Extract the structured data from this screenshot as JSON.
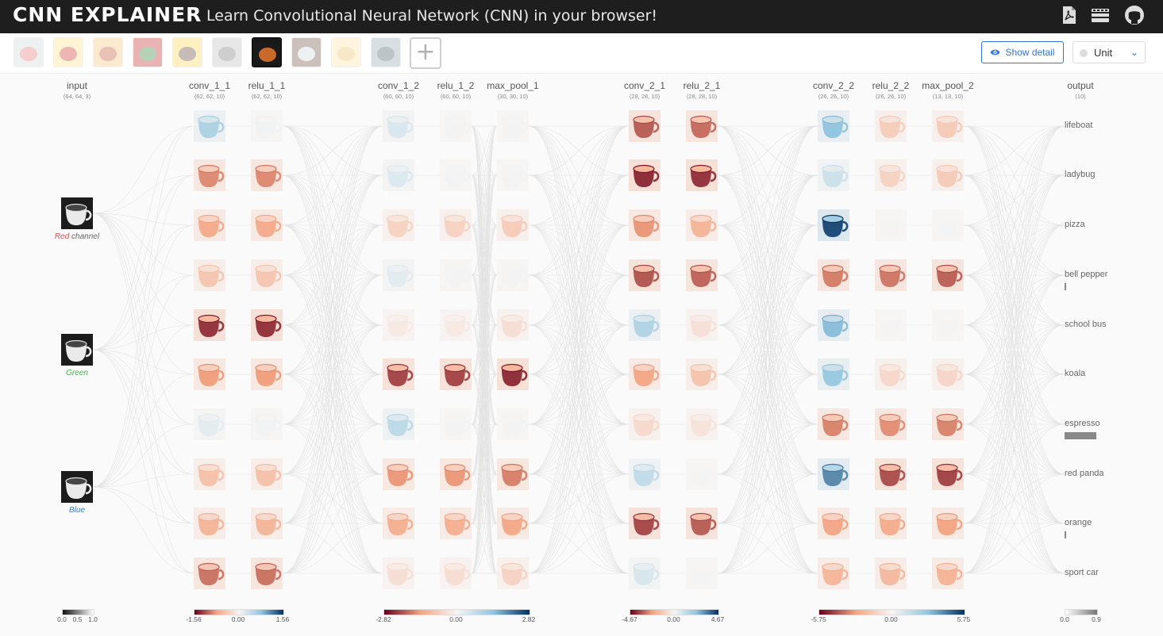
{
  "header": {
    "brand": "CNN EXPLAINER",
    "tagline": "Learn Convolutional Neural Network (CNN) in your browser!",
    "icons": [
      "pdf-icon",
      "video-icon",
      "github-icon"
    ]
  },
  "toolbar": {
    "thumbnails": [
      "lifeboat",
      "ladybug",
      "pizza",
      "bell pepper",
      "school bus",
      "koala",
      "espresso",
      "red panda",
      "orange",
      "sport car"
    ],
    "selected_index": 6,
    "add_label": "+",
    "detail_label": "Show detail",
    "unit_label": "Unit"
  },
  "layers": [
    {
      "name": "input",
      "dims": "(64, 64, 3)"
    },
    {
      "name": "conv_1_1",
      "dims": "(62, 62, 10)"
    },
    {
      "name": "relu_1_1",
      "dims": "(62, 62, 10)"
    },
    {
      "name": "conv_1_2",
      "dims": "(60, 60, 10)"
    },
    {
      "name": "relu_1_2",
      "dims": "(60, 60, 10)"
    },
    {
      "name": "max_pool_1",
      "dims": "(30, 30, 10)"
    },
    {
      "name": "conv_2_1",
      "dims": "(28, 28, 10)"
    },
    {
      "name": "relu_2_1",
      "dims": "(28, 28, 10)"
    },
    {
      "name": "conv_2_2",
      "dims": "(26, 26, 10)"
    },
    {
      "name": "relu_2_2",
      "dims": "(26, 26, 10)"
    },
    {
      "name": "max_pool_2",
      "dims": "(13, 13, 10)"
    },
    {
      "name": "output",
      "dims": "(10)"
    }
  ],
  "channels": [
    {
      "label_a": "Red",
      "label_b": " channel",
      "color": "#d9534f"
    },
    {
      "label_a": "Green",
      "label_b": "",
      "color": "#4caf50"
    },
    {
      "label_a": "Blue",
      "label_b": "",
      "color": "#3b7fc4"
    }
  ],
  "classes": [
    "lifeboat",
    "ladybug",
    "pizza",
    "bell pepper",
    "school bus",
    "koala",
    "espresso",
    "red panda",
    "orange",
    "sport car"
  ],
  "output_probs": [
    0,
    0,
    0,
    0.04,
    0,
    0,
    0.9,
    0,
    0.03,
    0
  ],
  "legends": [
    {
      "ticks": [
        "0.0",
        "0.5",
        "1.0"
      ]
    },
    {
      "ticks": [
        "-1.56",
        "0.00",
        "1.56"
      ]
    },
    {
      "ticks": [
        "-2.82",
        "0.00",
        "2.82"
      ]
    },
    {
      "ticks": [
        "-4.67",
        "0.00",
        "4.67"
      ]
    },
    {
      "ticks": [
        "-5.75",
        "0.00",
        "5.75"
      ]
    },
    {
      "ticks": [
        "0.0",
        "0.9"
      ]
    }
  ],
  "activations": [
    [
      0.55,
      -0.9,
      -0.7,
      -0.45,
      -1.3,
      -0.8,
      0.15,
      -0.5,
      -0.6,
      -1.0
    ],
    [
      0.05,
      -0.9,
      -0.7,
      -0.45,
      -1.3,
      -0.8,
      0.05,
      -0.5,
      -0.6,
      -1.0
    ],
    [
      0.4,
      0.35,
      -0.6,
      0.3,
      -0.2,
      -2.2,
      0.8,
      -1.5,
      -1.2,
      -0.4
    ],
    [
      0.05,
      0.05,
      -0.6,
      0.05,
      -0.2,
      -2.2,
      0.05,
      -1.5,
      -1.2,
      -0.4
    ],
    [
      0.05,
      0.05,
      -0.7,
      0.05,
      -0.4,
      -2.4,
      0.05,
      -1.7,
      -1.3,
      -0.6
    ],
    [
      -3.3,
      -4.0,
      -2.5,
      -3.4,
      1.6,
      -2.2,
      -0.8,
      1.2,
      -3.6,
      0.7
    ],
    [
      -3.1,
      -3.9,
      -1.8,
      -3.2,
      -0.6,
      -1.4,
      -0.5,
      0.05,
      -3.3,
      0.05
    ],
    [
      2.8,
      1.2,
      5.2,
      -3.5,
      3.0,
      2.6,
      -3.4,
      4.0,
      -2.7,
      -2.2
    ],
    [
      -1.4,
      -1.2,
      0.05,
      -3.6,
      0.05,
      -1.0,
      -3.2,
      -4.3,
      -2.5,
      -2.1
    ],
    [
      -1.5,
      -1.5,
      0.05,
      -4.0,
      0.05,
      -1.1,
      -3.4,
      -4.5,
      -2.8,
      -2.3
    ]
  ]
}
